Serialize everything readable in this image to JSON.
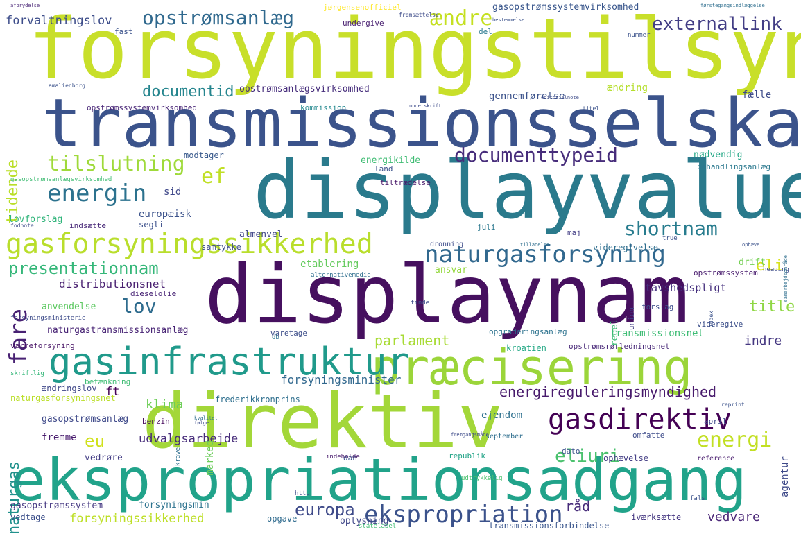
{
  "words": [
    {
      "text": "forsyningstilsyn",
      "color": "#c8df2a"
    },
    {
      "text": "transmissionsselskab",
      "color": "#3b538b"
    },
    {
      "text": "displayvalue",
      "color": "#2a7a8c"
    },
    {
      "text": "displaynam",
      "color": "#46105f"
    },
    {
      "text": "direktiv",
      "color": "#a3d739"
    },
    {
      "text": "ekspropriationsadgang",
      "color": "#21a38a"
    },
    {
      "text": "præcisering",
      "color": "#9bd53a"
    },
    {
      "text": "gasinfrastruktur",
      "color": "#209a8b"
    },
    {
      "text": "gasforsyningssikkerhed",
      "color": "#b9de2c"
    },
    {
      "text": "naturgasforsyning",
      "color": "#31688e"
    },
    {
      "text": "gasdirektiv",
      "color": "#440154"
    },
    {
      "text": "ekspropriation",
      "color": "#3b528b"
    },
    {
      "text": "energireguleringsmyndighed",
      "color": "#481a6c"
    },
    {
      "text": "opstrømsanlæg",
      "color": "#30698e"
    },
    {
      "text": "externallink",
      "color": "#433e85"
    },
    {
      "text": "documenttypeid",
      "color": "#472d7b"
    },
    {
      "text": "tilslutning",
      "color": "#9fda3a"
    },
    {
      "text": "energin",
      "color": "#2c728e"
    },
    {
      "text": "presentationnam",
      "color": "#35b779"
    },
    {
      "text": "shortnam",
      "color": "#287c8e"
    },
    {
      "text": "lov",
      "color": "#2f6c8e"
    },
    {
      "text": "fare",
      "color": "#482173"
    },
    {
      "text": "energi",
      "color": "#c2df23"
    },
    {
      "text": "eliuri",
      "color": "#4ac16d"
    },
    {
      "text": "ændre",
      "color": "#c5e021"
    },
    {
      "text": "tidende",
      "color": "#bade28"
    },
    {
      "text": "documentid",
      "color": "#25858e"
    },
    {
      "text": "ef",
      "color": "#c0df25"
    },
    {
      "text": "eu",
      "color": "#d0e11c"
    },
    {
      "text": "naturgas",
      "color": "#21918c"
    },
    {
      "text": "eli",
      "color": "#d8e219"
    },
    {
      "text": "title",
      "color": "#8fd744"
    },
    {
      "text": "parlament",
      "color": "#a8db34"
    },
    {
      "text": "indre",
      "color": "#453781"
    },
    {
      "text": "europa",
      "color": "#3e4a89"
    },
    {
      "text": "vedvare",
      "color": "#4b2878"
    },
    {
      "text": "forsyningssikkerhed",
      "color": "#bddf26"
    },
    {
      "text": "forvaltningslov",
      "color": "#3d4d8a"
    },
    {
      "text": "klima",
      "color": "#6ece58"
    },
    {
      "text": "udvalgsarbejde",
      "color": "#472c7a"
    },
    {
      "text": "forsyningsminister",
      "color": "#31688e"
    },
    {
      "text": "distributionsnet",
      "color": "#481f70"
    },
    {
      "text": "gasopstrømssystemvirksomhed",
      "color": "#39568c"
    },
    {
      "text": "opstrømsanlægsvirksomhed",
      "color": "#472e7c"
    },
    {
      "text": "opstrømssystemvirksomhed",
      "color": "#482576"
    },
    {
      "text": "gennemførelse",
      "color": "#3b528b"
    },
    {
      "text": "ændring",
      "color": "#b5de2b"
    },
    {
      "text": "fælle",
      "color": "#3e4c8a"
    },
    {
      "text": "nødvendig",
      "color": "#22a785"
    },
    {
      "text": "behandlingsanlæg",
      "color": "#2a788e"
    },
    {
      "text": "energikilde",
      "color": "#3fbc73"
    },
    {
      "text": "etablering",
      "color": "#65cb5e"
    },
    {
      "text": "ansvar",
      "color": "#95d840"
    },
    {
      "text": "drift",
      "color": "#75d054"
    },
    {
      "text": "tavshedspligt",
      "color": "#46307e"
    },
    {
      "text": "transmissionsnet",
      "color": "#3dbc74"
    },
    {
      "text": "europæisk",
      "color": "#3b528b"
    },
    {
      "text": "almenvel",
      "color": "#404688"
    },
    {
      "text": "videregivelse",
      "color": "#2e6e8e"
    },
    {
      "text": "anvendelse",
      "color": "#5ec962"
    },
    {
      "text": "naturgastransmissionsanlæg",
      "color": "#482475"
    },
    {
      "text": "lovforslag",
      "color": "#31b57b"
    },
    {
      "text": "sid",
      "color": "#3f4889"
    },
    {
      "text": "samtykke",
      "color": "#3d4e8a"
    },
    {
      "text": "segli",
      "color": "#3c508b"
    },
    {
      "text": "opgraderingsanlæg",
      "color": "#2c728e"
    },
    {
      "text": "opstrømsrørledningsnet",
      "color": "#482878"
    },
    {
      "text": "kroatien",
      "color": "#22a884"
    },
    {
      "text": "gasopstrømsanlæg",
      "color": "#3e4989"
    },
    {
      "text": "fremme",
      "color": "#481b6d"
    },
    {
      "text": "ft",
      "color": "#440154"
    },
    {
      "text": "vedrøre",
      "color": "#433d84"
    },
    {
      "text": "ejendom",
      "color": "#2d708e"
    },
    {
      "text": "marked",
      "color": "#6ccd5a"
    },
    {
      "text": "agentur",
      "color": "#3e4989"
    },
    {
      "text": "republik",
      "color": "#20a386"
    },
    {
      "text": "ophævelse",
      "color": "#433d84"
    },
    {
      "text": "omfatte",
      "color": "#3e4c8a"
    },
    {
      "text": "dato",
      "color": "#3b528b"
    },
    {
      "text": "gasopstrømssystem",
      "color": "#453882"
    },
    {
      "text": "forsyningsmin",
      "color": "#2c728e"
    },
    {
      "text": "opgave",
      "color": "#2f6b8e"
    },
    {
      "text": "oplysning",
      "color": "#3f4788"
    },
    {
      "text": "råd",
      "color": "#472c7a"
    },
    {
      "text": "iværksætte",
      "color": "#453781"
    },
    {
      "text": "transmissionsforbindelse",
      "color": "#39558c"
    },
    {
      "text": "vedtage",
      "color": "#3c4f8a"
    },
    {
      "text": "frederikkronprins",
      "color": "#2e6f8e"
    },
    {
      "text": "naturgasforsyningsnet",
      "color": "#bade28"
    },
    {
      "text": "ændringslov",
      "color": "#3f4788"
    },
    {
      "text": "betænkning",
      "color": "#3fbc73"
    },
    {
      "text": "dieselolie",
      "color": "#482475"
    },
    {
      "text": "forsyningsministerie",
      "color": "#3e4c8a"
    },
    {
      "text": "varmeforsyning",
      "color": "#471365"
    },
    {
      "text": "indsætte",
      "color": "#482878"
    },
    {
      "text": "modtager",
      "color": "#38598c"
    },
    {
      "text": "kommission",
      "color": "#23888e"
    },
    {
      "text": "land",
      "color": "#3b528b"
    },
    {
      "text": "tiltrædelse",
      "color": "#481769"
    },
    {
      "text": "undergive",
      "color": "#481f70"
    },
    {
      "text": "fast",
      "color": "#3b528b"
    },
    {
      "text": "del",
      "color": "#2a788e"
    },
    {
      "text": "varetage",
      "color": "#3d4e8a"
    },
    {
      "text": "db",
      "color": "#2c738e"
    },
    {
      "text": "regel",
      "color": "#3bbb75"
    },
    {
      "text": "union",
      "color": "#433e85"
    },
    {
      "text": "forslag",
      "color": "#3d4e8a"
    },
    {
      "text": "videregive",
      "color": "#3c4f8a"
    },
    {
      "text": "dan",
      "color": "#3b528b"
    },
    {
      "text": "benzin",
      "color": "#46085c"
    },
    {
      "text": "september",
      "color": "#2e6e8e"
    },
    {
      "text": "april",
      "color": "#3e4989"
    },
    {
      "text": "reference",
      "color": "#481b6d"
    },
    {
      "text": "juli",
      "color": "#2a788e"
    },
    {
      "text": "maj",
      "color": "#433e85"
    },
    {
      "text": "dronning",
      "color": "#3e4c8a"
    },
    {
      "text": "true",
      "color": "#3b528b"
    },
    {
      "text": "heading",
      "color": "#3e4c8a"
    },
    {
      "text": "indeholde",
      "color": "#481a6c"
    },
    {
      "text": "finde",
      "color": "#3d4e8a"
    },
    {
      "text": "jørgensenofficiel",
      "color": "#fde725"
    },
    {
      "text": "nummer",
      "color": "#3b528b"
    },
    {
      "text": "http",
      "color": "#3e4c8a"
    },
    {
      "text": "fals",
      "color": "#3b528b"
    },
    {
      "text": "statelabel",
      "color": "#3fbc73"
    },
    {
      "text": "krave",
      "color": "#2e6e8e"
    },
    {
      "text": "skriftlig",
      "color": "#35b779"
    },
    {
      "text": "index",
      "color": "#3b528b"
    },
    {
      "text": "alternativemedie",
      "color": "#2e6e8e"
    },
    {
      "text": "udtrykkelig",
      "color": "#4ac16d"
    },
    {
      "text": "gasopstrømsanlægsvirksomhed",
      "color": "#3fbc73"
    },
    {
      "text": "opstrømssystem",
      "color": "#481b6d"
    },
    {
      "text": "afbrydelse",
      "color": "#482475"
    },
    {
      "text": "amalienborg",
      "color": "#3b528b"
    },
    {
      "text": "fodnote",
      "color": "#3e4c8a"
    },
    {
      "text": "førstegangsindlæggelse",
      "color": "#2e6e8e"
    },
    {
      "text": "editorialnote",
      "color": "#3e4c8a"
    },
    {
      "text": "titel",
      "color": "#3b528b"
    },
    {
      "text": "fremgangsmåde",
      "color": "#3e4c8a"
    },
    {
      "text": "kvalitet",
      "color": "#2e6e8e"
    },
    {
      "text": "følge",
      "color": "#3e4c8a"
    },
    {
      "text": "samarbejdsområde",
      "color": "#2e6e8e"
    },
    {
      "text": "reprint",
      "color": "#3b528b"
    },
    {
      "text": "fremsættelse",
      "color": "#3e4c8a"
    },
    {
      "text": "bestemmelse",
      "color": "#3b528b"
    },
    {
      "text": "underskrift",
      "color": "#3e4c8a"
    },
    {
      "text": "tilladelse",
      "color": "#2e6e8e"
    },
    {
      "text": "ophæve",
      "color": "#3b528b"
    }
  ]
}
